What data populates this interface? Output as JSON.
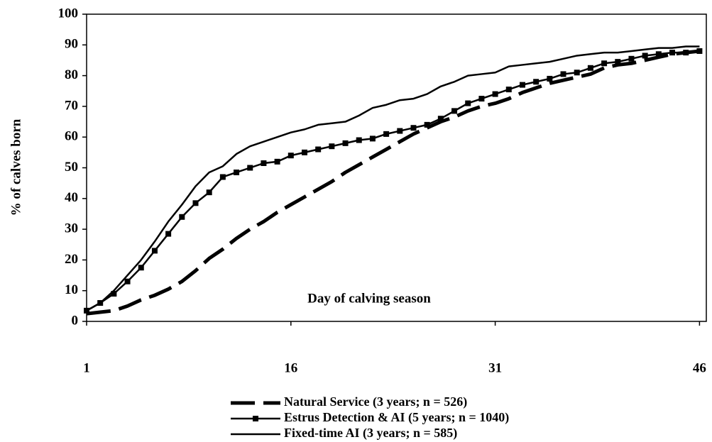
{
  "chart_data": {
    "type": "line",
    "y_label": "% of calves born",
    "annotation": "Day of calving season",
    "x": [
      1,
      2,
      3,
      4,
      5,
      6,
      7,
      8,
      9,
      10,
      11,
      12,
      13,
      14,
      15,
      16,
      17,
      18,
      19,
      20,
      21,
      22,
      23,
      24,
      25,
      26,
      27,
      28,
      29,
      30,
      31,
      32,
      33,
      34,
      35,
      36,
      37,
      38,
      39,
      40,
      41,
      42,
      43,
      44,
      45,
      46
    ],
    "series": [
      {
        "name": "Natural Service (3 years; n = 526)",
        "color": "#000000",
        "dash": true,
        "width": 5,
        "values": [
          2.5,
          3,
          3.5,
          5,
          7,
          8.5,
          10.5,
          13,
          16.5,
          20.5,
          23.5,
          27,
          30,
          32.5,
          35.5,
          38,
          40.5,
          43,
          45.5,
          48.5,
          51,
          53.5,
          56,
          58.5,
          61,
          63,
          65,
          66.5,
          68.5,
          70,
          71,
          72.5,
          74.5,
          76,
          77.5,
          78.5,
          79.5,
          80.5,
          82.5,
          83.5,
          84,
          85,
          86,
          87,
          87.5,
          88
        ]
      },
      {
        "name": "Estrus Detection & AI (5 years; n = 1040)",
        "color": "#000000",
        "marker": "square",
        "width": 2.5,
        "values": [
          3.5,
          6,
          9,
          13,
          17.5,
          23,
          28.5,
          34,
          38.5,
          42,
          47,
          48.5,
          50,
          51.5,
          52,
          54,
          55,
          56,
          57,
          58,
          59,
          59.5,
          61,
          62,
          63,
          64,
          66,
          68.5,
          71,
          72.5,
          74,
          75.5,
          77,
          78,
          79,
          80.5,
          81,
          82.5,
          84,
          84.5,
          85.5,
          86.5,
          87,
          87.5,
          87.5,
          88
        ]
      },
      {
        "name": "Fixed-time AI (3 years; n = 585)",
        "color": "#000000",
        "width": 2.5,
        "values": [
          3.5,
          6,
          10,
          15,
          20,
          26,
          32.5,
          38,
          44,
          48.5,
          50.5,
          54.5,
          57,
          58.5,
          60,
          61.5,
          62.5,
          64,
          64.5,
          65,
          67,
          69.5,
          70.5,
          72,
          72.5,
          74,
          76.5,
          78,
          80,
          80.5,
          81,
          83,
          83.5,
          84,
          84.5,
          85.5,
          86.5,
          87,
          87.5,
          87.5,
          88,
          88.5,
          89,
          89,
          89.5,
          89.5
        ]
      }
    ],
    "xlim": [
      1,
      46.5
    ],
    "xticks": [
      1,
      16,
      31,
      46
    ],
    "ylim": [
      0,
      100
    ],
    "yticks": [
      0,
      10,
      20,
      30,
      40,
      50,
      60,
      70,
      80,
      90,
      100
    ],
    "grid": false,
    "legend": "bottom"
  }
}
